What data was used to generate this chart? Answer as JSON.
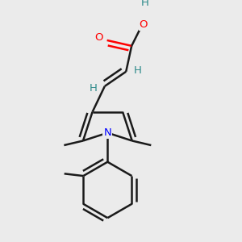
{
  "background_color": "#ebebeb",
  "bond_color": "#1a1a1a",
  "bond_width": 1.8,
  "atom_colors": {
    "O": "#ff0000",
    "N": "#0000ff",
    "H": "#2e8b8b",
    "C": "#1a1a1a"
  },
  "figsize": [
    3.0,
    3.0
  ],
  "dpi": 100,
  "xlim": [
    0.05,
    0.95
  ],
  "ylim": [
    0.02,
    0.98
  ]
}
